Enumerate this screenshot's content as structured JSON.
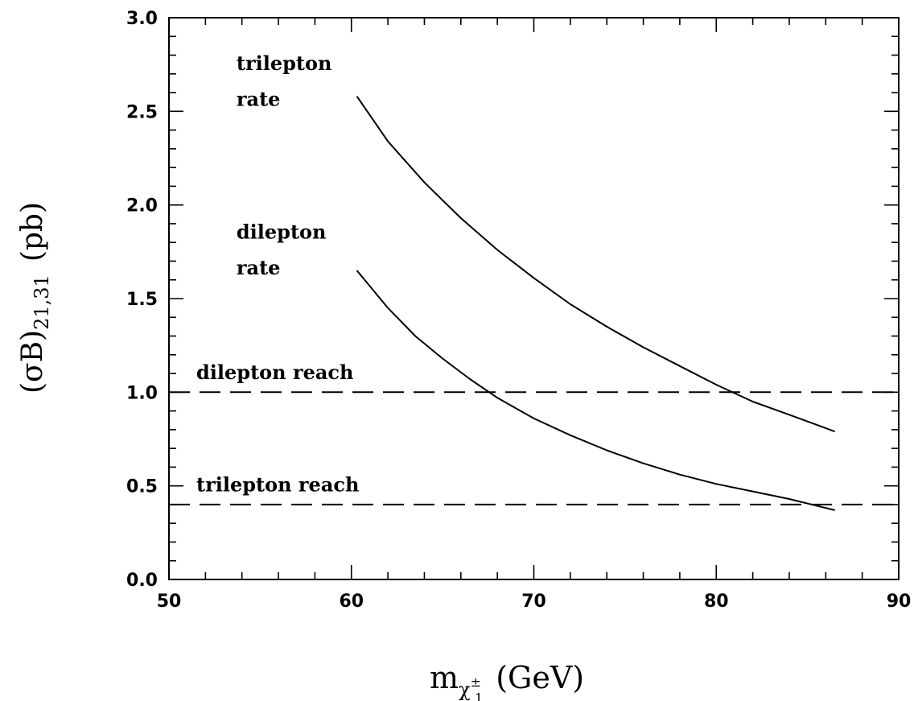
{
  "chart_data": {
    "type": "line",
    "xlabel": {
      "main": "m",
      "sub": "χ",
      "sub_sup": "±",
      "sub_sub": "1",
      "unit": "(GeV)"
    },
    "ylabel": {
      "main": "(σB)",
      "sub": "21,31",
      "unit": "(pb)"
    },
    "xlim": [
      50,
      90
    ],
    "ylim": [
      0,
      3.0
    ],
    "x_ticks": [
      "50",
      "60",
      "70",
      "80",
      "90"
    ],
    "y_ticks": [
      "0.0",
      "0.5",
      "1.0",
      "1.5",
      "2.0",
      "2.5",
      "3.0"
    ],
    "grid": false,
    "series": [
      {
        "key": "trilepton",
        "style": "solid",
        "x": [
          60.3,
          62,
          64,
          66,
          68,
          70,
          72,
          74,
          76,
          78,
          80,
          82,
          84,
          86.5
        ],
        "y": [
          2.58,
          2.34,
          2.12,
          1.93,
          1.76,
          1.61,
          1.47,
          1.35,
          1.24,
          1.14,
          1.04,
          0.95,
          0.88,
          0.79
        ]
      },
      {
        "key": "dilepton",
        "style": "solid",
        "x": [
          60.3,
          62,
          63.5,
          65,
          66.5,
          68,
          70,
          72,
          74,
          76,
          78,
          80,
          82,
          84,
          86.5
        ],
        "y": [
          1.65,
          1.45,
          1.3,
          1.18,
          1.07,
          0.97,
          0.86,
          0.77,
          0.69,
          0.62,
          0.56,
          0.51,
          0.47,
          0.43,
          0.37
        ]
      },
      {
        "key": "dilepton-reach",
        "style": "dashed",
        "x": [
          50,
          90
        ],
        "y": [
          1.0,
          1.0
        ]
      },
      {
        "key": "trilepton-reach",
        "style": "dashed",
        "x": [
          50,
          90
        ],
        "y": [
          0.4,
          0.4
        ]
      }
    ],
    "annotations": [
      {
        "key": "trilepton-rate",
        "lines": [
          "trilepton",
          "rate"
        ],
        "x": 53.7,
        "y": [
          2.72,
          2.53
        ]
      },
      {
        "key": "dilepton-rate",
        "lines": [
          "dilepton",
          "rate"
        ],
        "x": 53.7,
        "y": [
          1.82,
          1.63
        ]
      },
      {
        "key": "dilepton-reach",
        "lines": [
          "dilepton reach"
        ],
        "x": 51.5,
        "y": [
          1.07
        ]
      },
      {
        "key": "trilepton-reach",
        "lines": [
          "trilepton reach"
        ],
        "x": 51.5,
        "y": [
          0.47
        ]
      }
    ]
  }
}
